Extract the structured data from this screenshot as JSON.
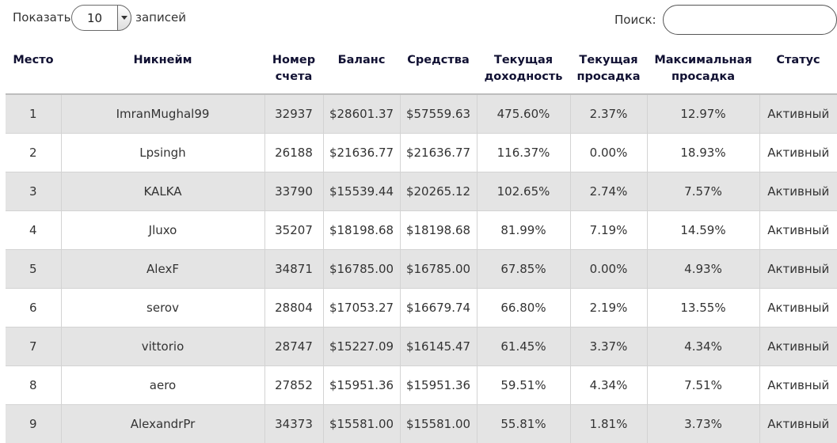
{
  "controls": {
    "show_label": "Показать",
    "page_size": "10",
    "records_label": "записей",
    "search_label": "Поиск:",
    "search_value": ""
  },
  "table": {
    "headers": {
      "rank": "Место",
      "nickname": "Никнейм",
      "account_line1": "Номер",
      "account_line2": "счета",
      "balance": "Баланс",
      "equity": "Средства",
      "return_line1": "Текущая",
      "return_line2": "доходность",
      "dd_line1": "Текущая",
      "dd_line2": "просадка",
      "maxdd_line1": "Максимальная",
      "maxdd_line2": "просадка",
      "status": "Статус"
    },
    "rows": [
      {
        "rank": "1",
        "nickname": "ImranMughal99",
        "account": "32937",
        "balance": "$28601.37",
        "equity": "$57559.63",
        "return": "475.60%",
        "drawdown": "2.37%",
        "max_drawdown": "12.97%",
        "status": "Активный"
      },
      {
        "rank": "2",
        "nickname": "Lpsingh",
        "account": "26188",
        "balance": "$21636.77",
        "equity": "$21636.77",
        "return": "116.37%",
        "drawdown": "0.00%",
        "max_drawdown": "18.93%",
        "status": "Активный"
      },
      {
        "rank": "3",
        "nickname": "KALKA",
        "account": "33790",
        "balance": "$15539.44",
        "equity": "$20265.12",
        "return": "102.65%",
        "drawdown": "2.74%",
        "max_drawdown": "7.57%",
        "status": "Активный"
      },
      {
        "rank": "4",
        "nickname": "Jluxo",
        "account": "35207",
        "balance": "$18198.68",
        "equity": "$18198.68",
        "return": "81.99%",
        "drawdown": "7.19%",
        "max_drawdown": "14.59%",
        "status": "Активный"
      },
      {
        "rank": "5",
        "nickname": "AlexF",
        "account": "34871",
        "balance": "$16785.00",
        "equity": "$16785.00",
        "return": "67.85%",
        "drawdown": "0.00%",
        "max_drawdown": "4.93%",
        "status": "Активный"
      },
      {
        "rank": "6",
        "nickname": "serov",
        "account": "28804",
        "balance": "$17053.27",
        "equity": "$16679.74",
        "return": "66.80%",
        "drawdown": "2.19%",
        "max_drawdown": "13.55%",
        "status": "Активный"
      },
      {
        "rank": "7",
        "nickname": "vittorio",
        "account": "28747",
        "balance": "$15227.09",
        "equity": "$16145.47",
        "return": "61.45%",
        "drawdown": "3.37%",
        "max_drawdown": "4.34%",
        "status": "Активный"
      },
      {
        "rank": "8",
        "nickname": "aero",
        "account": "27852",
        "balance": "$15951.36",
        "equity": "$15951.36",
        "return": "59.51%",
        "drawdown": "4.34%",
        "max_drawdown": "7.51%",
        "status": "Активный"
      },
      {
        "rank": "9",
        "nickname": "AlexandrPr",
        "account": "34373",
        "balance": "$15581.00",
        "equity": "$15581.00",
        "return": "55.81%",
        "drawdown": "1.81%",
        "max_drawdown": "3.73%",
        "status": "Активный"
      }
    ]
  }
}
